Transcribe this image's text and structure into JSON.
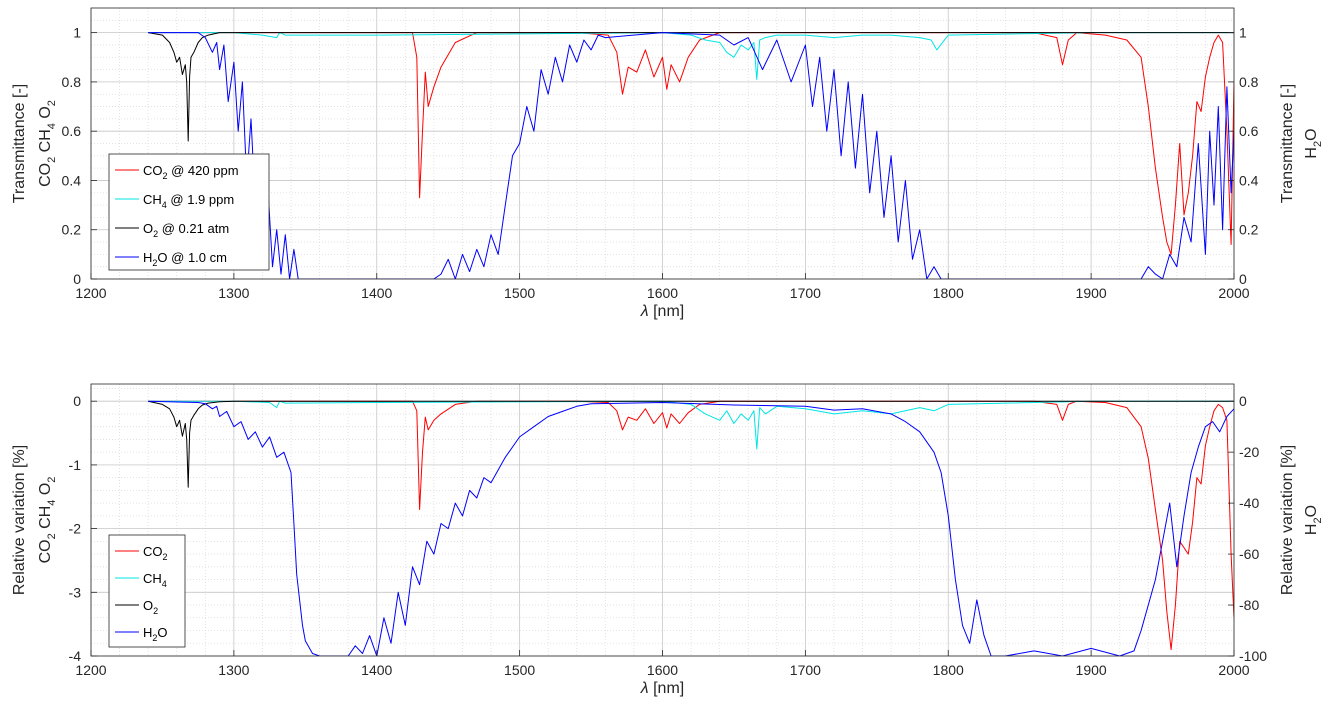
{
  "chart_data": [
    {
      "type": "line",
      "xlabel": "λ [nm]",
      "ylabel_left": [
        "Transmittance [-]",
        "CO2 CH4 O2"
      ],
      "ylabel_right": [
        "Transmittance [-]",
        "H2O"
      ],
      "xlim": [
        1200,
        2000
      ],
      "ylim_left": [
        0,
        1.1
      ],
      "ylim_right": [
        0,
        1.1
      ],
      "xticks": [
        "1200",
        "1300",
        "1400",
        "1500",
        "1600",
        "1700",
        "1800",
        "1900",
        "2000"
      ],
      "yticks_left": [
        "0",
        "0.2",
        "0.4",
        "0.6",
        "0.8",
        "1"
      ],
      "yticks_right": [
        "0",
        "0.2",
        "0.4",
        "0.6",
        "0.8",
        "1"
      ],
      "grid": true,
      "minor_grid": true,
      "legend_position": "lower-left",
      "legend": [
        {
          "base": "CO",
          "sub": "2",
          "rest": " @ 420 ppm"
        },
        {
          "base": "CH",
          "sub": "4",
          "rest": " @ 1.9 ppm"
        },
        {
          "base": "O",
          "sub": "2",
          "rest": " @ 0.21 atm"
        },
        {
          "base": "H",
          "sub": "2",
          "rest": "O @ 1.0 cm"
        }
      ],
      "series": [
        {
          "name": "CO2 @ 420 ppm",
          "axis": "left",
          "color": "#ff0000",
          "x": [
            1240,
            1425,
            1428,
            1430,
            1432,
            1434,
            1436,
            1440,
            1445,
            1455,
            1470,
            1540,
            1562,
            1568,
            1572,
            1576,
            1582,
            1588,
            1594,
            1600,
            1603,
            1606,
            1612,
            1618,
            1626,
            1640,
            1860,
            1876,
            1880,
            1884,
            1890,
            1910,
            1925,
            1935,
            1940,
            1945,
            1950,
            1953,
            1956,
            1959,
            1962,
            1965,
            1968,
            1971,
            1974,
            1977,
            1980,
            1983,
            1986,
            1989,
            1992,
            1995,
            1998,
            2000
          ],
          "y": [
            1.0,
            1.0,
            0.9,
            0.33,
            0.6,
            0.84,
            0.7,
            0.78,
            0.86,
            0.96,
            1.0,
            1.0,
            0.99,
            0.92,
            0.75,
            0.86,
            0.84,
            0.93,
            0.82,
            0.9,
            0.77,
            0.87,
            0.8,
            0.9,
            0.97,
            1.0,
            1.0,
            0.98,
            0.87,
            0.97,
            1.0,
            0.99,
            0.97,
            0.9,
            0.7,
            0.45,
            0.25,
            0.15,
            0.1,
            0.3,
            0.55,
            0.26,
            0.35,
            0.5,
            0.72,
            0.68,
            0.82,
            0.9,
            0.96,
            0.99,
            0.96,
            0.6,
            0.14,
            0.8
          ]
        },
        {
          "name": "CH4 @ 1.9 ppm",
          "axis": "left",
          "color": "#00e5e5",
          "x": [
            1240,
            1300,
            1320,
            1330,
            1332,
            1336,
            1400,
            1600,
            1620,
            1630,
            1640,
            1645,
            1650,
            1655,
            1660,
            1664,
            1666,
            1668,
            1672,
            1680,
            1700,
            1720,
            1740,
            1760,
            1780,
            1788,
            1792,
            1800,
            1900,
            2000
          ],
          "y": [
            1.0,
            1.0,
            0.99,
            0.98,
            1.0,
            0.99,
            0.99,
            1.0,
            0.99,
            0.97,
            0.96,
            0.92,
            0.9,
            0.95,
            0.93,
            0.96,
            0.81,
            0.97,
            0.98,
            0.99,
            0.99,
            0.98,
            0.99,
            0.99,
            0.98,
            0.97,
            0.93,
            0.99,
            1.0,
            1.0
          ]
        },
        {
          "name": "O2 @ 0.21 atm",
          "axis": "left",
          "color": "#000000",
          "x": [
            1240,
            1250,
            1255,
            1258,
            1260,
            1262,
            1264,
            1266,
            1267,
            1268,
            1269,
            1270,
            1272,
            1275,
            1278,
            1282,
            1290,
            1300,
            2000
          ],
          "y": [
            1.0,
            0.99,
            0.96,
            0.92,
            0.88,
            0.9,
            0.83,
            0.87,
            0.8,
            0.56,
            0.82,
            0.9,
            0.92,
            0.96,
            0.98,
            0.99,
            1.0,
            1.0,
            1.0
          ]
        },
        {
          "name": "H2O @ 1.0 cm",
          "axis": "right",
          "color": "#0000ff",
          "x": [
            1240,
            1275,
            1280,
            1285,
            1288,
            1290,
            1293,
            1296,
            1300,
            1303,
            1306,
            1309,
            1312,
            1315,
            1318,
            1321,
            1324,
            1327,
            1330,
            1333,
            1336,
            1339,
            1342,
            1345,
            1350,
            1400,
            1440,
            1445,
            1450,
            1455,
            1460,
            1465,
            1470,
            1475,
            1480,
            1485,
            1490,
            1495,
            1500,
            1505,
            1510,
            1515,
            1520,
            1525,
            1530,
            1535,
            1540,
            1545,
            1550,
            1555,
            1560,
            1600,
            1640,
            1650,
            1660,
            1670,
            1680,
            1690,
            1700,
            1705,
            1710,
            1715,
            1720,
            1725,
            1730,
            1735,
            1740,
            1745,
            1750,
            1755,
            1760,
            1765,
            1770,
            1775,
            1780,
            1785,
            1790,
            1795,
            1800,
            1850,
            1935,
            1940,
            1945,
            1950,
            1955,
            1960,
            1965,
            1970,
            1975,
            1980,
            1983,
            1986,
            1989,
            1992,
            1995,
            1998,
            2000
          ],
          "y": [
            1.0,
            1.0,
            0.98,
            0.92,
            0.96,
            0.85,
            0.95,
            0.72,
            0.88,
            0.6,
            0.8,
            0.4,
            0.65,
            0.3,
            0.45,
            0.18,
            0.35,
            0.05,
            0.2,
            0.02,
            0.18,
            0.0,
            0.12,
            0.0,
            0.0,
            0.0,
            0.0,
            0.02,
            0.08,
            0.0,
            0.1,
            0.03,
            0.12,
            0.05,
            0.18,
            0.1,
            0.3,
            0.5,
            0.55,
            0.7,
            0.6,
            0.85,
            0.75,
            0.9,
            0.8,
            0.95,
            0.88,
            0.97,
            0.93,
            0.99,
            0.98,
            1.0,
            0.99,
            0.95,
            0.98,
            0.85,
            0.97,
            0.8,
            0.95,
            0.7,
            0.9,
            0.6,
            0.85,
            0.5,
            0.8,
            0.45,
            0.75,
            0.35,
            0.6,
            0.25,
            0.5,
            0.15,
            0.4,
            0.08,
            0.2,
            0.0,
            0.05,
            0.0,
            0.0,
            0.0,
            0.0,
            0.05,
            0.02,
            0.0,
            0.1,
            0.05,
            0.25,
            0.15,
            0.55,
            0.1,
            0.6,
            0.3,
            0.7,
            0.2,
            0.78,
            0.35,
            0.6
          ]
        }
      ]
    },
    {
      "type": "line",
      "xlabel": "λ [nm]",
      "ylabel_left": [
        "Relative variation [%]",
        "CO2 CH4 O2"
      ],
      "ylabel_right": [
        "Relative variation [%]",
        "H2O"
      ],
      "xlim": [
        1200,
        2000
      ],
      "ylim_left": [
        -4,
        0.27
      ],
      "ylim_right": [
        -100,
        6.75
      ],
      "xticks": [
        "1200",
        "1300",
        "1400",
        "1500",
        "1600",
        "1700",
        "1800",
        "1900",
        "2000"
      ],
      "yticks_left": [
        "-4",
        "-3",
        "-2",
        "-1",
        "0"
      ],
      "yticks_right": [
        "-100",
        "-80",
        "-60",
        "-40",
        "-20",
        "0"
      ],
      "grid": true,
      "minor_grid": true,
      "legend_position": "lower-left",
      "legend": [
        {
          "base": "CO",
          "sub": "2",
          "rest": ""
        },
        {
          "base": "CH",
          "sub": "4",
          "rest": ""
        },
        {
          "base": "O",
          "sub": "2",
          "rest": ""
        },
        {
          "base": "H",
          "sub": "2",
          "rest": "O"
        }
      ],
      "series": [
        {
          "name": "CO2",
          "axis": "left",
          "color": "#ff0000",
          "x": [
            1240,
            1425,
            1428,
            1430,
            1432,
            1434,
            1436,
            1440,
            1445,
            1455,
            1470,
            1540,
            1562,
            1568,
            1572,
            1576,
            1582,
            1588,
            1594,
            1600,
            1603,
            1606,
            1612,
            1618,
            1626,
            1640,
            1860,
            1876,
            1880,
            1884,
            1890,
            1910,
            1925,
            1935,
            1940,
            1945,
            1950,
            1953,
            1956,
            1959,
            1962,
            1965,
            1968,
            1971,
            1974,
            1977,
            1980,
            1983,
            1986,
            1989,
            1992,
            1995,
            1998,
            2000
          ],
          "y": [
            0.0,
            0.0,
            -0.15,
            -1.7,
            -0.8,
            -0.25,
            -0.45,
            -0.3,
            -0.2,
            -0.05,
            0.0,
            0.0,
            -0.02,
            -0.15,
            -0.45,
            -0.25,
            -0.3,
            -0.12,
            -0.35,
            -0.18,
            -0.42,
            -0.2,
            -0.35,
            -0.18,
            -0.05,
            0.0,
            0.0,
            -0.05,
            -0.3,
            -0.05,
            0.0,
            -0.02,
            -0.1,
            -0.4,
            -0.9,
            -1.7,
            -2.5,
            -3.3,
            -3.9,
            -3.2,
            -2.2,
            -2.3,
            -2.4,
            -1.9,
            -1.2,
            -1.3,
            -0.7,
            -0.4,
            -0.15,
            -0.05,
            -0.1,
            -0.3,
            -2.4,
            -3.4
          ]
        },
        {
          "name": "CH4",
          "axis": "left",
          "color": "#00e5e5",
          "x": [
            1240,
            1300,
            1325,
            1330,
            1332,
            1336,
            1400,
            1600,
            1620,
            1630,
            1640,
            1645,
            1650,
            1655,
            1660,
            1664,
            1666,
            1668,
            1672,
            1680,
            1700,
            1720,
            1740,
            1760,
            1780,
            1790,
            1800,
            1900,
            2000
          ],
          "y": [
            0.0,
            0.0,
            -0.02,
            -0.1,
            0.0,
            -0.03,
            -0.02,
            0.0,
            -0.05,
            -0.2,
            -0.3,
            -0.15,
            -0.35,
            -0.2,
            -0.3,
            -0.15,
            -0.75,
            -0.1,
            -0.2,
            -0.08,
            -0.12,
            -0.2,
            -0.15,
            -0.2,
            -0.1,
            -0.15,
            -0.05,
            0.0,
            0.0
          ]
        },
        {
          "name": "O2",
          "axis": "left",
          "color": "#000000",
          "x": [
            1240,
            1250,
            1255,
            1258,
            1260,
            1262,
            1264,
            1266,
            1267,
            1268,
            1269,
            1270,
            1272,
            1275,
            1278,
            1282,
            1290,
            1300,
            2000
          ],
          "y": [
            0.0,
            -0.05,
            -0.12,
            -0.25,
            -0.4,
            -0.3,
            -0.55,
            -0.35,
            -0.6,
            -1.35,
            -0.5,
            -0.3,
            -0.22,
            -0.12,
            -0.06,
            -0.03,
            -0.01,
            0.0,
            0.0
          ]
        },
        {
          "name": "H2O",
          "axis": "right",
          "color": "#0000ff",
          "x": [
            1240,
            1275,
            1280,
            1285,
            1288,
            1290,
            1295,
            1300,
            1305,
            1310,
            1315,
            1320,
            1325,
            1330,
            1335,
            1340,
            1342,
            1344,
            1346,
            1348,
            1350,
            1355,
            1360,
            1380,
            1385,
            1390,
            1395,
            1400,
            1405,
            1410,
            1415,
            1420,
            1425,
            1430,
            1435,
            1440,
            1445,
            1450,
            1455,
            1460,
            1465,
            1470,
            1475,
            1480,
            1490,
            1500,
            1510,
            1520,
            1530,
            1540,
            1550,
            1600,
            1650,
            1700,
            1720,
            1740,
            1760,
            1770,
            1780,
            1790,
            1795,
            1800,
            1805,
            1810,
            1815,
            1820,
            1825,
            1830,
            1840,
            1860,
            1880,
            1900,
            1920,
            1930,
            1935,
            1940,
            1945,
            1950,
            1955,
            1960,
            1965,
            1970,
            1975,
            1980,
            1985,
            1990,
            1995,
            2000
          ],
          "y": [
            0.0,
            -0.5,
            -1.0,
            -3.0,
            -2.0,
            -6.0,
            -4.0,
            -10.0,
            -8.0,
            -15.0,
            -12.0,
            -18.0,
            -14.0,
            -22.0,
            -20.0,
            -28.0,
            -48.0,
            -68.0,
            -78.0,
            -88.0,
            -94.0,
            -99.0,
            -100.0,
            -100.0,
            -96.0,
            -99.0,
            -92.0,
            -100.0,
            -85.0,
            -95.0,
            -75.0,
            -88.0,
            -65.0,
            -72.0,
            -55.0,
            -60.0,
            -48.0,
            -50.0,
            -40.0,
            -45.0,
            -35.0,
            -38.0,
            -30.0,
            -32.0,
            -22.0,
            -14.0,
            -10.0,
            -6.0,
            -4.0,
            -2.0,
            -1.0,
            -0.5,
            -1.5,
            -2.0,
            -3.5,
            -3.0,
            -5.0,
            -8.0,
            -12.0,
            -20.0,
            -28.0,
            -45.0,
            -70.0,
            -88.0,
            -95.0,
            -78.0,
            -92.0,
            -100.0,
            -100.0,
            -98.0,
            -100.0,
            -97.0,
            -100.0,
            -98.0,
            -90.0,
            -80.0,
            -70.0,
            -55.0,
            -40.0,
            -65.0,
            -45.0,
            -28.0,
            -18.0,
            -10.0,
            -8.0,
            -12.0,
            -6.0,
            -3.0
          ]
        }
      ]
    }
  ]
}
